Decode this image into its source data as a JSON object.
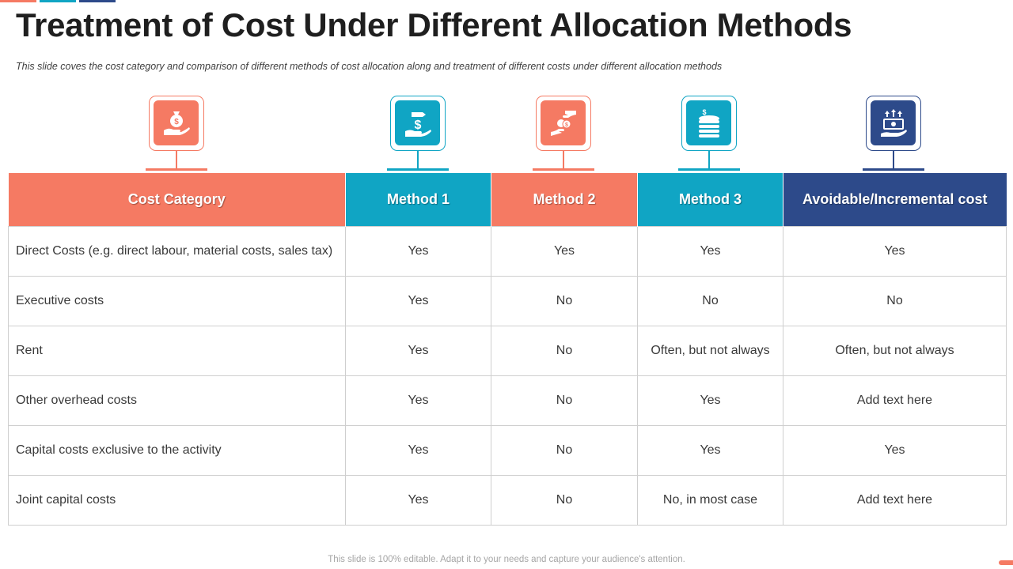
{
  "colors": {
    "coral": "#f57a63",
    "teal": "#10a5c4",
    "navy": "#2d4a8a",
    "grid": "#cfcfcf"
  },
  "slide": {
    "title": "Treatment of Cost Under Different Allocation Methods",
    "subtitle": "This slide coves the cost category and comparison of different methods of cost allocation along and treatment of different costs under different allocation methods",
    "footer": "This slide is 100% editable. Adapt it to your needs and capture your audience's attention."
  },
  "icons": [
    {
      "name": "money-bag-hand-icon",
      "color": "coral"
    },
    {
      "name": "dollar-hand-icon",
      "color": "teal"
    },
    {
      "name": "coin-exchange-hands-icon",
      "color": "coral"
    },
    {
      "name": "coin-stack-icon",
      "color": "teal"
    },
    {
      "name": "cash-growth-icon",
      "color": "navy"
    }
  ],
  "table": {
    "headers": [
      "Cost Category",
      "Method 1",
      "Method 2",
      "Method 3",
      "Avoidable/Incremental cost"
    ],
    "rows": [
      [
        "Direct Costs (e.g. direct labour, material costs, sales tax)",
        "Yes",
        "Yes",
        "Yes",
        "Yes"
      ],
      [
        "Executive  costs",
        "Yes",
        "No",
        "No",
        "No"
      ],
      [
        "Rent",
        "Yes",
        "No",
        "Often,  but not always",
        "Often,  but not always"
      ],
      [
        "Other  overhead  costs",
        "Yes",
        "No",
        "Yes",
        "Add text here"
      ],
      [
        "Capital costs exclusive  to the activity",
        "Yes",
        "No",
        "Yes",
        "Yes"
      ],
      [
        "Joint capital costs",
        "Yes",
        "No",
        "No, in most case",
        "Add text here"
      ]
    ]
  }
}
